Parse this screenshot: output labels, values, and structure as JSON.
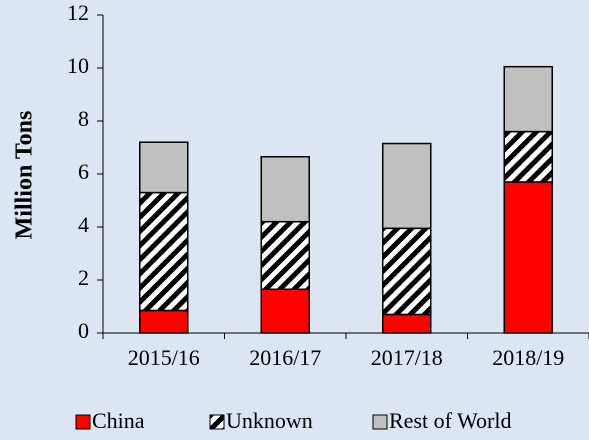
{
  "chart_data": {
    "type": "stacked-bar",
    "y_label": "Million Tons",
    "categories": [
      "2015/16",
      "2016/17",
      "2017/18",
      "2018/19"
    ],
    "series": [
      {
        "name": "China",
        "color": "#ff0000",
        "values": [
          0.85,
          1.65,
          0.7,
          5.7
        ]
      },
      {
        "name": "Unknown",
        "color": "#000000",
        "pattern": "diagonal-stripes",
        "values": [
          4.45,
          2.55,
          3.25,
          1.9
        ]
      },
      {
        "name": "Rest of World",
        "color": "#c0c0c0",
        "values": [
          1.9,
          2.45,
          3.2,
          2.45
        ]
      }
    ],
    "ylim": [
      0,
      12
    ],
    "yticks": [
      0,
      2,
      4,
      6,
      8,
      10,
      12
    ],
    "grid": false,
    "legend": "bottom"
  }
}
